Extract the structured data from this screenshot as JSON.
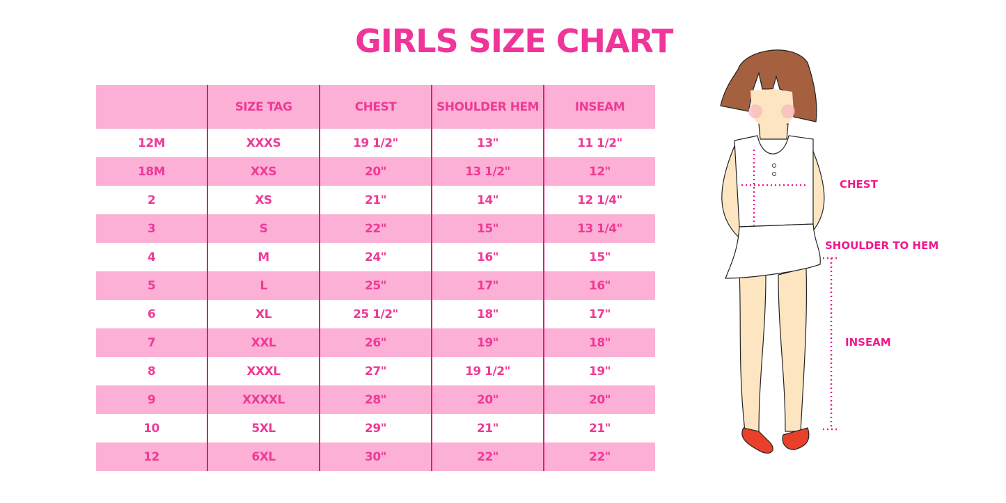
{
  "title": "GIRLS SIZE CHART",
  "table": {
    "headers": [
      "",
      "SIZE TAG",
      "CHEST",
      "SHOULDER HEM",
      "INSEAM"
    ],
    "rows": [
      [
        "12M",
        "XXXS",
        "19 1/2\"",
        "13\"",
        "11 1/2\""
      ],
      [
        "18M",
        "XXS",
        "20\"",
        "13 1/2\"",
        "12\""
      ],
      [
        "2",
        "XS",
        "21\"",
        "14\"",
        "12 1/4\""
      ],
      [
        "3",
        "S",
        "22\"",
        "15\"",
        "13 1/4\""
      ],
      [
        "4",
        "M",
        "24\"",
        "16\"",
        "15\""
      ],
      [
        "5",
        "L",
        "25\"",
        "17\"",
        "16\""
      ],
      [
        "6",
        "XL",
        "25 1/2\"",
        "18\"",
        "17\""
      ],
      [
        "7",
        "XXL",
        "26\"",
        "19\"",
        "18\""
      ],
      [
        "8",
        "XXXL",
        "27\"",
        "19 1/2\"",
        "19\""
      ],
      [
        "9",
        "XXXXL",
        "28\"",
        "20\"",
        "20\""
      ],
      [
        "10",
        "5XL",
        "29\"",
        "21\"",
        "21\""
      ],
      [
        "12",
        "6XL",
        "30\"",
        "22\"",
        "22\""
      ]
    ]
  },
  "figure": {
    "labels": {
      "chest": "CHEST",
      "shoulder": "SHOULDER TO HEM",
      "inseam": "INSEAM"
    }
  },
  "colors": {
    "accent": "#ee3a96",
    "row_fill": "#fdb0d5",
    "divider": "#e0197f"
  }
}
